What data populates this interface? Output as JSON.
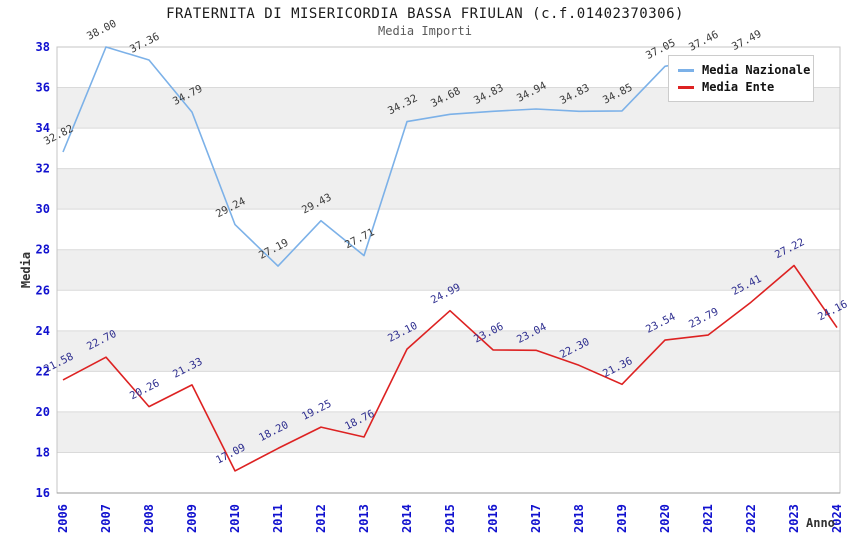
{
  "chart_data": {
    "type": "line",
    "title": "FRATERNITA DI MISERICORDIA BASSA FRIULAN (c.f.01402370306)",
    "subtitle": "Media Importi",
    "xlabel": "Anno",
    "ylabel": "Media",
    "ylim": [
      16,
      38
    ],
    "ytick_step": 2,
    "grid": "horizontal-with-alternating-bands",
    "legend_position": "top-right",
    "years": [
      2006,
      2007,
      2008,
      2009,
      2010,
      2011,
      2012,
      2013,
      2014,
      2015,
      2016,
      2017,
      2018,
      2019,
      2020,
      2021,
      2022,
      2023,
      2024
    ],
    "series": [
      {
        "name": "Media Nazionale",
        "color": "#7cb1e8",
        "label_color": "#3a3a3a",
        "values": [
          32.82,
          38.0,
          37.36,
          34.79,
          29.24,
          27.19,
          29.43,
          27.71,
          34.32,
          34.68,
          34.83,
          34.94,
          34.83,
          34.85,
          37.05,
          37.46,
          37.49,
          37.45,
          null
        ],
        "skip_label_at": [
          17
        ]
      },
      {
        "name": "Media Ente",
        "color": "#dd2222",
        "label_color": "#2e2e8f",
        "values": [
          21.58,
          22.7,
          20.26,
          21.33,
          17.09,
          18.2,
          19.25,
          18.76,
          23.1,
          24.99,
          23.06,
          23.04,
          22.3,
          21.36,
          23.54,
          23.79,
          25.41,
          27.22,
          24.16
        ],
        "skip_label_at": []
      }
    ],
    "colors": {
      "tick_labels": "#1111cf",
      "gridline": "#dadada",
      "band": "#efefef",
      "frame": "#c4c4c4",
      "axis_line": "#999999",
      "title": "#1a1a1a",
      "subtitle": "#5a5a5a"
    }
  }
}
